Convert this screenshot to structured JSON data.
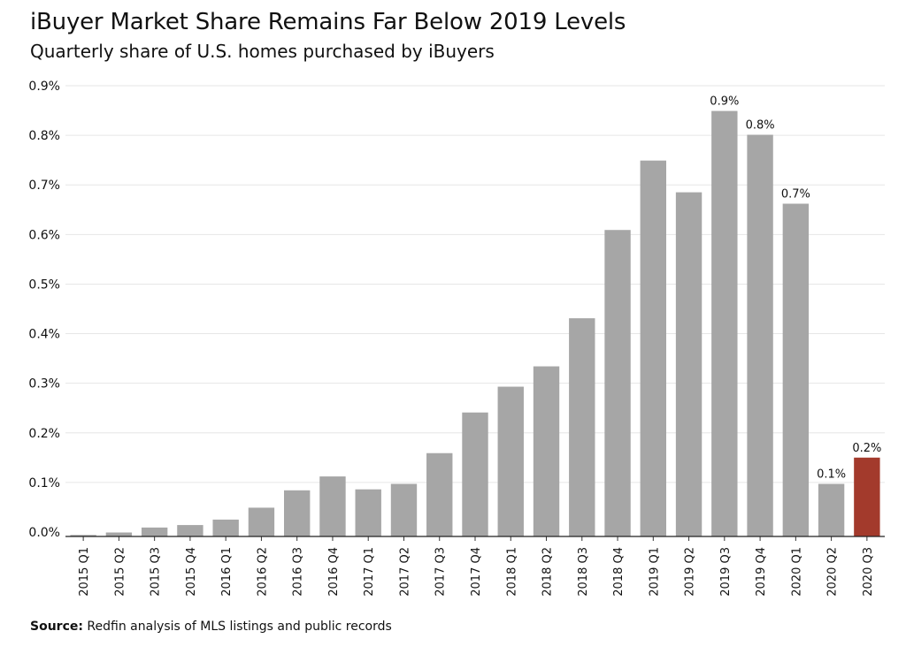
{
  "chart_data": {
    "type": "bar",
    "title": "iBuyer Market Share Remains Far Below 2019 Levels",
    "subtitle": "Quarterly share of U.S. homes purchased by iBuyers",
    "xlabel": "",
    "ylabel": "",
    "ylim": [
      0,
      0.9
    ],
    "yticks": [
      "0.0%",
      "0.1%",
      "0.2%",
      "0.3%",
      "0.4%",
      "0.5%",
      "0.6%",
      "0.7%",
      "0.8%",
      "0.9%"
    ],
    "grid": true,
    "categories": [
      "2015 Q1",
      "2015 Q2",
      "2015 Q3",
      "2015 Q4",
      "2016 Q1",
      "2016 Q2",
      "2016 Q3",
      "2016 Q4",
      "2017 Q1",
      "2017 Q2",
      "2017 Q3",
      "2017 Q4",
      "2018 Q1",
      "2018 Q2",
      "2018 Q3",
      "2018 Q4",
      "2019 Q1",
      "2019 Q2",
      "2019 Q3",
      "2019 Q4",
      "2020 Q1",
      "2020 Q2",
      "2020 Q3"
    ],
    "values": [
      0.003,
      0.008,
      0.018,
      0.023,
      0.034,
      0.058,
      0.093,
      0.121,
      0.095,
      0.106,
      0.168,
      0.25,
      0.302,
      0.343,
      0.44,
      0.618,
      0.758,
      0.694,
      0.858,
      0.81,
      0.671,
      0.106,
      0.159
    ],
    "data_labels": [
      "",
      "",
      "",
      "",
      "",
      "",
      "",
      "",
      "",
      "",
      "",
      "",
      "",
      "",
      "",
      "",
      "",
      "",
      "0.9%",
      "0.8%",
      "0.7%",
      "0.1%",
      "0.2%"
    ],
    "bar_color": "#a6a6a6",
    "highlight_color": "#a33a2c",
    "highlight_index": 22
  },
  "source": {
    "label": "Source:",
    "text": "Redfin analysis of MLS listings and public records"
  }
}
